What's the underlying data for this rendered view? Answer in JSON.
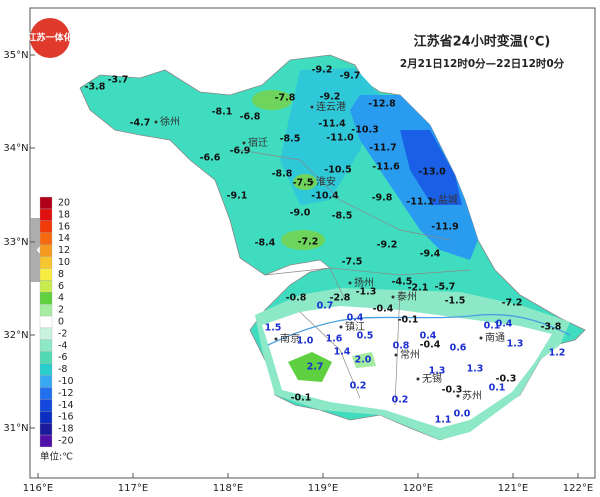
{
  "header": {
    "title": "江苏省24小时变温(℃)",
    "subtitle": "2月21日12时0分—22日12时0分",
    "logo": "江苏一体化"
  },
  "axes": {
    "lon": [
      "116°E",
      "117°E",
      "118°E",
      "119°E",
      "120°E",
      "121°E",
      "122°E"
    ],
    "lat": [
      "35°N",
      "34°N",
      "33°N",
      "32°N",
      "31°N"
    ]
  },
  "legend": {
    "values": [
      20,
      18,
      16,
      14,
      12,
      10,
      8,
      6,
      4,
      2,
      0,
      -2,
      -4,
      -6,
      -8,
      -10,
      -12,
      -14,
      -16,
      -18,
      -20
    ],
    "colors": [
      "#b0001a",
      "#e01010",
      "#f03a0a",
      "#f56a10",
      "#f59a20",
      "#f7c530",
      "#f7ec40",
      "#c8ec50",
      "#5fd040",
      "#a6eca0",
      "#ffffff",
      "#c9f3df",
      "#8ce8c6",
      "#52d9b2",
      "#2acdcd",
      "#38a8f0",
      "#2070ee",
      "#1448dc",
      "#0a2ec0",
      "#1a1a9a",
      "#5010a8"
    ],
    "unit": "单位:℃"
  },
  "cities": [
    "徐州",
    "连云港",
    "宿迁",
    "淮安",
    "盐城",
    "扬州",
    "泰州",
    "镇江",
    "南京",
    "南通",
    "常州",
    "无锡",
    "苏州"
  ],
  "values": [
    "-3.8",
    "-3.7",
    "-4.7",
    "-8.1",
    "-6.8",
    "-7.8",
    "-9.2",
    "-9.7",
    "-9.2",
    "-12.8",
    "-11.4",
    "-10.3",
    "-11.0",
    "-8.5",
    "-6.9",
    "-6.6",
    "-11.7",
    "-10.5",
    "-11.6",
    "-13.0",
    "-8.8",
    "-7.5",
    "-10.4",
    "-9.1",
    "-9.8",
    "-11.1",
    "-9.0",
    "-8.5",
    "-11.9",
    "-8.4",
    "-7.2",
    "-9.2",
    "-9.4",
    "-7.5",
    "-4.5",
    "-2.1",
    "-5.7",
    "-0.8",
    "-2.8",
    "-1.3",
    "-1.5",
    "-7.2",
    "0.7",
    "-0.4",
    "0.4",
    "-0.1",
    "0.1",
    "0.4",
    "-3.8",
    "1.5",
    "1.0",
    "1.6",
    "0.5",
    "0.4",
    "-0.4",
    "1.3",
    "0.8",
    "0.6",
    "1.4",
    "2.0",
    "1.2",
    "2.7",
    "1.3",
    "1.3",
    "-0.3",
    "0.2",
    "-0.3",
    "0.1",
    "-0.1",
    "0.2",
    "0.0",
    "1.1"
  ]
}
